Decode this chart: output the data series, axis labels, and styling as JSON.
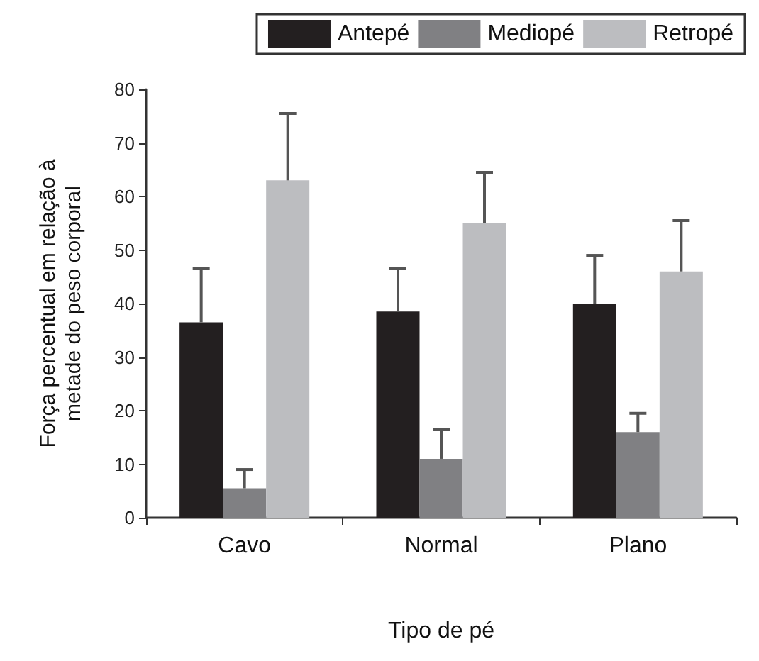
{
  "chart_data": {
    "type": "bar",
    "xlabel": "Tipo de pé",
    "ylabel": "Força percentual em relação à\nmetade do peso corporal",
    "categories": [
      "Cavo",
      "Normal",
      "Plano"
    ],
    "series": [
      {
        "name": "Antepé",
        "color": "#231f20",
        "values": [
          36.5,
          38.5,
          40
        ],
        "errors": [
          [
            36.5,
            46.5
          ],
          [
            38.5,
            46.5
          ],
          [
            40,
            49
          ]
        ]
      },
      {
        "name": "Mediopé",
        "color": "#808083",
        "values": [
          5.5,
          11,
          16
        ],
        "errors": [
          [
            5.5,
            9
          ],
          [
            11,
            16.5
          ],
          [
            16,
            19.5
          ]
        ]
      },
      {
        "name": "Retropé",
        "color": "#bcbdc0",
        "values": [
          63,
          55,
          46
        ],
        "errors": [
          [
            63,
            75.5
          ],
          [
            55,
            64.5
          ],
          [
            46,
            55.5
          ]
        ]
      }
    ],
    "ylim": [
      0,
      80
    ],
    "yticks": [
      0,
      10,
      20,
      30,
      40,
      50,
      60,
      70,
      80
    ],
    "grid": false,
    "legend": "top right"
  }
}
